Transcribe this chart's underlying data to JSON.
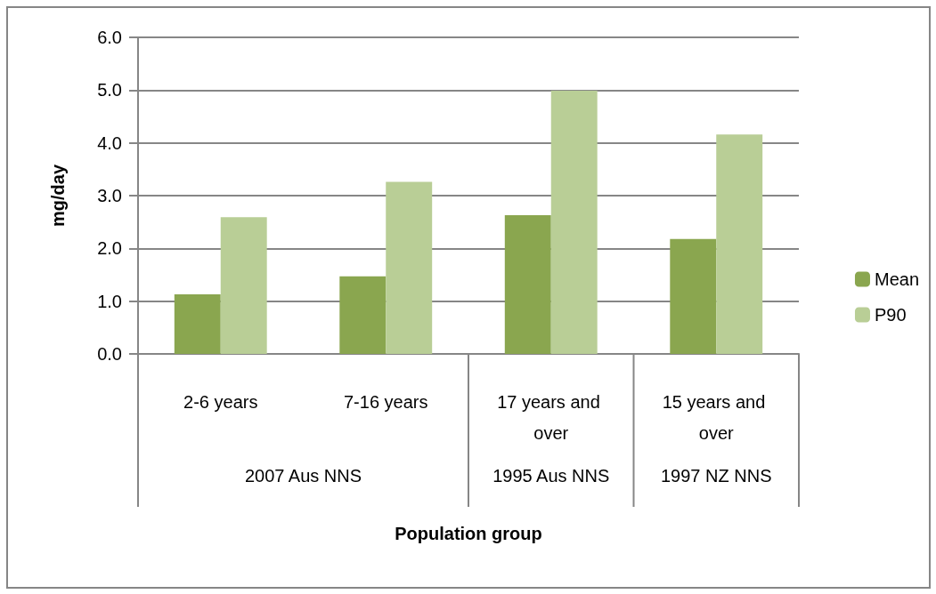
{
  "chart_data": {
    "type": "bar",
    "xlabel": "Population group",
    "ylabel": "mg/day",
    "categories": [
      "2-6 years",
      "7-16 years",
      "17 years and over",
      "15 years and over"
    ],
    "series": [
      {
        "name": "Mean",
        "color": "#8aa64f",
        "values": [
          1.13,
          1.47,
          2.63,
          2.18
        ]
      },
      {
        "name": "P90",
        "color": "#b9ce96",
        "values": [
          2.59,
          3.26,
          4.99,
          4.16
        ]
      }
    ],
    "annotations": [
      "2007 Aus NNS",
      "1995 Aus NNS",
      "1997 NZ NNS"
    ],
    "ylim": [
      0,
      6
    ],
    "yticks": [
      {
        "value": 0,
        "label": "0.0"
      },
      {
        "value": 1,
        "label": "1.0"
      },
      {
        "value": 2,
        "label": "2.0"
      },
      {
        "value": 3,
        "label": "3.0"
      },
      {
        "value": 4,
        "label": "4.0"
      },
      {
        "value": 5,
        "label": "5.0"
      },
      {
        "value": 6,
        "label": "6.0"
      }
    ],
    "grid": "y",
    "legend": "right"
  }
}
